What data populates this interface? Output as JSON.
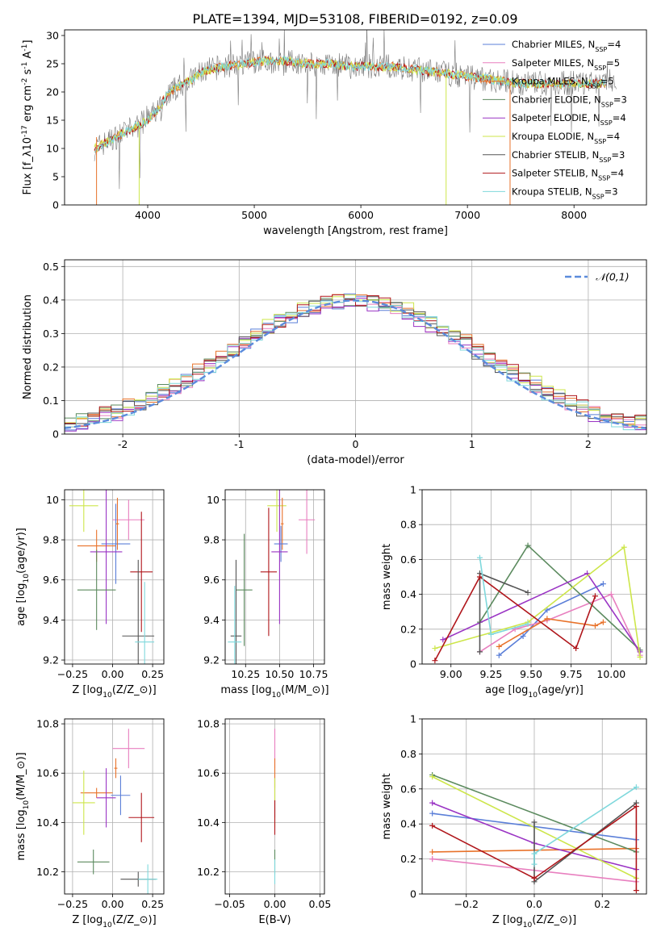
{
  "figure": {
    "title": "PLATE=1394, MJD=53108, FIBERID=0192, z=0.09"
  },
  "colors": {
    "Chabrier MILES": "#5b7fd8",
    "Salpeter MILES": "#e87fbf",
    "Kroupa MILES": "#e8722a",
    "Chabrier ELODIE": "#5b8a5e",
    "Salpeter ELODIE": "#9a34c4",
    "Kroupa ELODIE": "#cde64a",
    "Chabrier STELIB": "#555555",
    "Salpeter STELIB": "#b0161b",
    "Kroupa STELIB": "#7fd8dc",
    "dashed": "#5b8bdc",
    "grid": "#b0b0b0"
  },
  "chart_data": [
    {
      "type": "line",
      "id": "spectrum",
      "xlabel": "wavelength [Angstrom, rest frame]",
      "ylabel": "Flux [f_λ10^{-17} erg cm^{-2} s^{-1} A^{-1}]",
      "xlim": [
        3220,
        8680
      ],
      "ylim": [
        0,
        31
      ],
      "xticks": [
        4000,
        5000,
        6000,
        7000,
        8000
      ],
      "yticks": [
        0,
        5,
        10,
        15,
        20,
        25,
        30
      ],
      "grid": false,
      "legend_position": "upper-right",
      "series": [
        {
          "name": "Chabrier MILES, N_{SSP}=4",
          "key": "Chabrier MILES"
        },
        {
          "name": "Salpeter MILES, N_{SSP}=5",
          "key": "Salpeter MILES"
        },
        {
          "name": "Kroupa MILES, N_{SSP}=5",
          "key": "Kroupa MILES"
        },
        {
          "name": "Chabrier ELODIE, N_{SSP}=3",
          "key": "Chabrier ELODIE"
        },
        {
          "name": "Salpeter ELODIE, N_{SSP}=4",
          "key": "Salpeter ELODIE"
        },
        {
          "name": "Kroupa ELODIE, N_{SSP}=4",
          "key": "Kroupa ELODIE"
        },
        {
          "name": "Chabrier STELIB, N_{SSP}=3",
          "key": "Chabrier STELIB"
        },
        {
          "name": "Salpeter STELIB, N_{SSP}=4",
          "key": "Salpeter STELIB"
        },
        {
          "name": "Kroupa STELIB, N_{SSP}=3",
          "key": "Kroupa STELIB"
        }
      ],
      "continuum": {
        "x": [
          3500,
          3700,
          3900,
          4000,
          4100,
          4200,
          4300,
          4400,
          4500,
          4700,
          4900,
          5100,
          5300,
          5500,
          5700,
          5900,
          6100,
          6300,
          6500,
          6700,
          6900,
          7100,
          7300,
          7500,
          7700,
          7900,
          8100,
          8300,
          8400
        ],
        "y": [
          10,
          12,
          14,
          15,
          17,
          20,
          21,
          22,
          23.5,
          24.5,
          25,
          25.5,
          25.5,
          25,
          25,
          24.5,
          24.5,
          24.5,
          24,
          23.5,
          23,
          22.5,
          22,
          21.5,
          21.5,
          21.5,
          21.5,
          21.5,
          21
        ]
      }
    },
    {
      "type": "bar",
      "id": "residual-histogram",
      "xlabel": "(data-model)/error",
      "ylabel": "Normed distribution",
      "xlim": [
        -2.5,
        2.5
      ],
      "ylim": [
        0,
        0.52
      ],
      "xticks": [
        -2,
        -1,
        0,
        1,
        2
      ],
      "yticks": [
        0.0,
        0.1,
        0.2,
        0.3,
        0.4,
        0.5
      ],
      "grid": true,
      "legend_position": "upper-right",
      "legend": [
        "𝒩(0,1)"
      ],
      "bin_width": 0.1,
      "bin_start": -2.5,
      "hist_order": [
        "Chabrier MILES",
        "Salpeter MILES",
        "Kroupa MILES",
        "Chabrier ELODIE",
        "Salpeter ELODIE",
        "Kroupa ELODIE",
        "Chabrier STELIB",
        "Salpeter STELIB",
        "Kroupa STELIB"
      ],
      "hist_offsets": [
        0.0,
        -0.006,
        0.004,
        0.003,
        -0.008,
        0.006,
        -0.004,
        0.005,
        -0.005
      ]
    },
    {
      "type": "scatter",
      "id": "age-vs-Z",
      "xlabel": "Z [log_{10}(Z/Z_⊙)]",
      "ylabel": "age  [log_{10}(age/yr)]",
      "xlim": [
        -0.3,
        0.32
      ],
      "ylim": [
        9.18,
        10.05
      ],
      "xticks": [
        -0.25,
        0.0,
        0.25
      ],
      "xtick_labels": [
        "−0.25",
        "0.00",
        "0.25"
      ],
      "yticks": [
        9.2,
        9.4,
        9.6,
        9.8,
        10.0
      ],
      "grid": true,
      "points": [
        {
          "key": "Kroupa ELODIE",
          "x": -0.18,
          "xerr": 0.09,
          "y": 9.97,
          "yerr": 0.13
        },
        {
          "key": "Kroupa MILES",
          "x": -0.1,
          "xerr": 0.12,
          "y": 9.77,
          "yerr": 0.08
        },
        {
          "key": "Salpeter MILES",
          "x": 0.1,
          "xerr": 0.1,
          "y": 9.9,
          "yerr": 0.1
        },
        {
          "key": "Chabrier MILES",
          "x": 0.02,
          "xerr": 0.09,
          "y": 9.78,
          "yerr": 0.2
        },
        {
          "key": "Kroupa MILES",
          "x": 0.03,
          "xerr": 0.01,
          "y": 9.88,
          "yerr": 0.13
        },
        {
          "key": "Salpeter ELODIE",
          "x": -0.04,
          "xerr": 0.1,
          "y": 9.74,
          "yerr": 0.36
        },
        {
          "key": "Chabrier ELODIE",
          "x": -0.1,
          "xerr": 0.12,
          "y": 9.55,
          "yerr": 0.2
        },
        {
          "key": "Salpeter STELIB",
          "x": 0.18,
          "xerr": 0.07,
          "y": 9.64,
          "yerr": 0.3
        },
        {
          "key": "Chabrier STELIB",
          "x": 0.16,
          "xerr": 0.1,
          "y": 9.32,
          "yerr": 0.38
        },
        {
          "key": "Kroupa STELIB",
          "x": 0.2,
          "xerr": 0.06,
          "y": 9.29,
          "yerr": 0.3
        }
      ]
    },
    {
      "type": "scatter",
      "id": "age-vs-mass",
      "xlabel": "mass [log_{10}(M/M_⊙)]",
      "ylabel": "",
      "xlim": [
        10.1,
        10.83
      ],
      "ylim": [
        9.18,
        10.05
      ],
      "xticks": [
        10.25,
        10.5,
        10.75
      ],
      "xtick_labels": [
        "10.25",
        "10.50",
        "10.75"
      ],
      "yticks": [
        9.2,
        9.4,
        9.6,
        9.8,
        10.0
      ],
      "grid": true,
      "points": [
        {
          "key": "Kroupa ELODIE",
          "x": 10.48,
          "xerr": 0.07,
          "y": 9.97,
          "yerr": 0.13
        },
        {
          "key": "Kroupa MILES",
          "x": 10.52,
          "xerr": 0.01,
          "y": 9.88,
          "yerr": 0.13
        },
        {
          "key": "Salpeter MILES",
          "x": 10.7,
          "xerr": 0.06,
          "y": 9.9,
          "yerr": 0.17
        },
        {
          "key": "Chabrier MILES",
          "x": 10.51,
          "xerr": 0.05,
          "y": 9.78,
          "yerr": 0.09
        },
        {
          "key": "Salpeter ELODIE",
          "x": 10.5,
          "xerr": 0.06,
          "y": 9.74,
          "yerr": 0.36
        },
        {
          "key": "Chabrier ELODIE",
          "x": 10.24,
          "xerr": 0.06,
          "y": 9.55,
          "yerr": 0.28
        },
        {
          "key": "Salpeter STELIB",
          "x": 10.42,
          "xerr": 0.06,
          "y": 9.64,
          "yerr": 0.32
        },
        {
          "key": "Chabrier STELIB",
          "x": 10.18,
          "xerr": 0.04,
          "y": 9.32,
          "yerr": 0.38
        },
        {
          "key": "Kroupa STELIB",
          "x": 10.17,
          "xerr": 0.05,
          "y": 9.29,
          "yerr": 0.28
        }
      ]
    },
    {
      "type": "line",
      "id": "weight-vs-age",
      "xlabel": "age  [log_{10}(age/yr)]",
      "ylabel": "mass weight",
      "xlim": [
        8.82,
        10.22
      ],
      "ylim": [
        0,
        1
      ],
      "xticks": [
        9.0,
        9.25,
        9.5,
        9.75,
        10.0
      ],
      "xtick_labels": [
        "9.00",
        "9.25",
        "9.50",
        "9.75",
        "10.00"
      ],
      "yticks": [
        0.0,
        0.2,
        0.4,
        0.6,
        0.8,
        1.0
      ],
      "grid": true,
      "series": [
        {
          "key": "Chabrier MILES",
          "x": [
            9.3,
            9.45,
            9.6,
            9.95
          ],
          "y": [
            0.05,
            0.16,
            0.31,
            0.46
          ]
        },
        {
          "key": "Salpeter MILES",
          "x": [
            9.18,
            9.4,
            9.6,
            10.0,
            10.18
          ],
          "y": [
            0.07,
            0.2,
            0.25,
            0.4,
            0.05
          ]
        },
        {
          "key": "Kroupa MILES",
          "x": [
            9.3,
            9.6,
            9.9,
            9.95
          ],
          "y": [
            0.1,
            0.26,
            0.22,
            0.24
          ]
        },
        {
          "key": "Chabrier ELODIE",
          "x": [
            9.18,
            9.48,
            10.18
          ],
          "y": [
            0.24,
            0.68,
            0.08
          ]
        },
        {
          "key": "Salpeter ELODIE",
          "x": [
            8.95,
            9.85,
            10.18
          ],
          "y": [
            0.14,
            0.52,
            0.07
          ]
        },
        {
          "key": "Kroupa ELODIE",
          "x": [
            8.9,
            9.48,
            10.08,
            10.18
          ],
          "y": [
            0.09,
            0.24,
            0.67,
            0.04
          ]
        },
        {
          "key": "Chabrier STELIB",
          "x": [
            9.18,
            9.18,
            9.48
          ],
          "y": [
            0.07,
            0.52,
            0.41
          ]
        },
        {
          "key": "Salpeter STELIB",
          "x": [
            8.9,
            9.18,
            9.78,
            9.9
          ],
          "y": [
            0.02,
            0.5,
            0.09,
            0.39
          ]
        },
        {
          "key": "Kroupa STELIB",
          "x": [
            9.18,
            9.25,
            9.48
          ],
          "y": [
            0.61,
            0.17,
            0.23
          ]
        }
      ]
    },
    {
      "type": "scatter",
      "id": "mass-vs-Z",
      "xlabel": "Z [log_{10}(Z/Z_⊙)]",
      "ylabel": "mass [log_{10}(M/M_⊙)]",
      "xlim": [
        -0.3,
        0.32
      ],
      "ylim": [
        10.11,
        10.82
      ],
      "xticks": [
        -0.25,
        0.0,
        0.25
      ],
      "xtick_labels": [
        "−0.25",
        "0.00",
        "0.25"
      ],
      "yticks": [
        10.2,
        10.4,
        10.6,
        10.8
      ],
      "grid": true,
      "points": [
        {
          "key": "Salpeter MILES",
          "x": 0.1,
          "xerr": 0.1,
          "y": 10.7,
          "yerr": 0.08
        },
        {
          "key": "Kroupa MILES",
          "x": 0.02,
          "xerr": 0.01,
          "y": 10.62,
          "yerr": 0.04
        },
        {
          "key": "Chabrier MILES",
          "x": 0.05,
          "xerr": 0.06,
          "y": 10.51,
          "yerr": 0.08
        },
        {
          "key": "Kroupa MILES",
          "x": -0.1,
          "xerr": 0.1,
          "y": 10.52,
          "yerr": 0.02
        },
        {
          "key": "Salpeter ELODIE",
          "x": -0.04,
          "xerr": 0.06,
          "y": 10.5,
          "yerr": 0.12
        },
        {
          "key": "Kroupa ELODIE",
          "x": -0.18,
          "xerr": 0.07,
          "y": 10.48,
          "yerr": 0.13
        },
        {
          "key": "Salpeter STELIB",
          "x": 0.18,
          "xerr": 0.08,
          "y": 10.42,
          "yerr": 0.1
        },
        {
          "key": "Chabrier ELODIE",
          "x": -0.12,
          "xerr": 0.1,
          "y": 10.24,
          "yerr": 0.05
        },
        {
          "key": "Chabrier STELIB",
          "x": 0.16,
          "xerr": 0.11,
          "y": 10.17,
          "yerr": 0.03
        },
        {
          "key": "Kroupa STELIB",
          "x": 0.22,
          "xerr": 0.06,
          "y": 10.17,
          "yerr": 0.06
        }
      ]
    },
    {
      "type": "scatter",
      "id": "mass-vs-EBV",
      "xlabel": "E(B-V)",
      "ylabel": "",
      "xlim": [
        -0.055,
        0.055
      ],
      "ylim": [
        10.11,
        10.82
      ],
      "xticks": [
        -0.05,
        0.0,
        0.05
      ],
      "xtick_labels": [
        "−0.05",
        "0.00",
        "0.05"
      ],
      "yticks": [
        10.2,
        10.4,
        10.6,
        10.8
      ],
      "grid": true,
      "points": [
        {
          "key": "Salpeter MILES",
          "x": 0.0,
          "xerr": 0,
          "y": 10.7,
          "yerr": 0.08
        },
        {
          "key": "Kroupa MILES",
          "x": 0.0,
          "xerr": 0,
          "y": 10.6,
          "yerr": 0.06
        },
        {
          "key": "Salpeter ELODIE",
          "x": 0.0,
          "xerr": 0,
          "y": 10.5,
          "yerr": 0.08
        },
        {
          "key": "Kroupa ELODIE",
          "x": 0.0,
          "xerr": 0,
          "y": 10.48,
          "yerr": 0.1
        },
        {
          "key": "Salpeter STELIB",
          "x": 0.0,
          "xerr": 0,
          "y": 10.42,
          "yerr": 0.07
        },
        {
          "key": "Chabrier ELODIE",
          "x": 0.0,
          "xerr": 0,
          "y": 10.24,
          "yerr": 0.05
        },
        {
          "key": "Kroupa STELIB",
          "x": 0.0,
          "xerr": 0,
          "y": 10.2,
          "yerr": 0.05
        }
      ]
    },
    {
      "type": "line",
      "id": "weight-vs-Z",
      "xlabel": "Z [log_{10}(Z/Z_⊙)]",
      "ylabel": "mass weight",
      "xlim": [
        -0.33,
        0.33
      ],
      "ylim": [
        0,
        1
      ],
      "xticks": [
        -0.2,
        0.0,
        0.2
      ],
      "xtick_labels": [
        "−0.2",
        "0.0",
        "0.2"
      ],
      "yticks": [
        0.0,
        0.2,
        0.4,
        0.6,
        0.8,
        1.0
      ],
      "grid": true,
      "series": [
        {
          "key": "Chabrier MILES",
          "x": [
            -0.3,
            0.3
          ],
          "y": [
            0.46,
            0.31
          ]
        },
        {
          "key": "Salpeter MILES",
          "x": [
            -0.3,
            0.3,
            -0.3
          ],
          "y": [
            0.2,
            0.07,
            0.2
          ]
        },
        {
          "key": "Kroupa MILES",
          "x": [
            -0.3,
            0.3
          ],
          "y": [
            0.24,
            0.26
          ]
        },
        {
          "key": "Chabrier ELODIE",
          "x": [
            -0.3,
            0.3
          ],
          "y": [
            0.68,
            0.24
          ]
        },
        {
          "key": "Salpeter ELODIE",
          "x": [
            -0.3,
            0.0,
            0.3
          ],
          "y": [
            0.52,
            0.29,
            0.14
          ]
        },
        {
          "key": "Kroupa ELODIE",
          "x": [
            -0.3,
            0.3
          ],
          "y": [
            0.67,
            0.09
          ]
        },
        {
          "key": "Chabrier STELIB",
          "x": [
            0.0,
            0.0,
            0.3
          ],
          "y": [
            0.41,
            0.07,
            0.52
          ]
        },
        {
          "key": "Salpeter STELIB",
          "x": [
            -0.3,
            0.0,
            0.3,
            0.3
          ],
          "y": [
            0.39,
            0.09,
            0.5,
            0.02
          ]
        },
        {
          "key": "Kroupa STELIB",
          "x": [
            0.0,
            0.0,
            0.3
          ],
          "y": [
            0.17,
            0.23,
            0.61
          ]
        }
      ]
    }
  ]
}
